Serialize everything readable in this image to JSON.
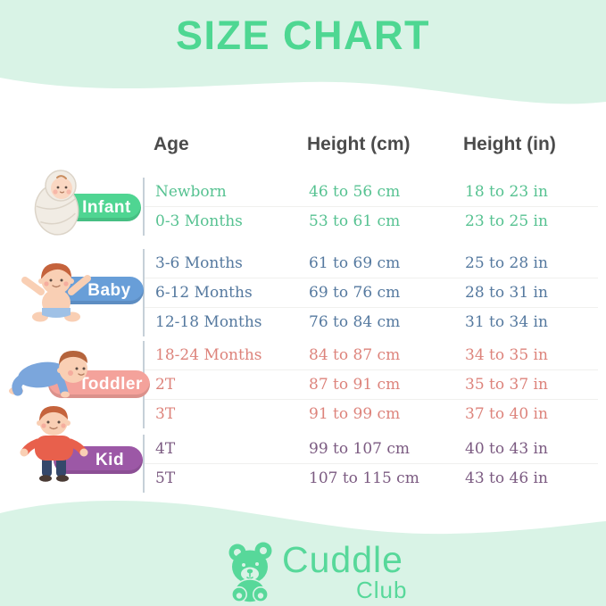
{
  "title": "SIZE CHART",
  "header": {
    "age": "Age",
    "height_cm": "Height (cm)",
    "height_in": "Height (in)"
  },
  "groups": [
    {
      "label": "Infant",
      "pill_color": "#4fd592",
      "text_color": "#56c291",
      "rows": [
        {
          "age": "Newborn",
          "cm": "46 to 56 cm",
          "in": "18 to 23 in"
        },
        {
          "age": "0-3 Months",
          "cm": "53 to 61 cm",
          "in": "23 to 25 in"
        }
      ]
    },
    {
      "label": "Baby",
      "pill_color": "#689ed8",
      "text_color": "#55799f",
      "rows": [
        {
          "age": "3-6 Months",
          "cm": "61 to 69 cm",
          "in": "25 to 28 in"
        },
        {
          "age": "6-12 Months",
          "cm": "69 to 76 cm",
          "in": "28 to 31 in"
        },
        {
          "age": "12-18 Months",
          "cm": "76 to 84 cm",
          "in": "31 to 34 in"
        }
      ]
    },
    {
      "label": "Toddler",
      "pill_color": "#f4a29b",
      "text_color": "#dd837b",
      "rows": [
        {
          "age": "18-24 Months",
          "cm": "84 to 87 cm",
          "in": "34 to 35 in"
        },
        {
          "age": "2T",
          "cm": "87 to 91 cm",
          "in": "35 to 37 in"
        },
        {
          "age": "3T",
          "cm": "91 to 99 cm",
          "in": "37 to 40 in"
        }
      ]
    },
    {
      "label": "Kid",
      "pill_color": "#9c58a6",
      "text_color": "#7b5a81",
      "rows": [
        {
          "age": "4T",
          "cm": "99 to 107 cm",
          "in": "40 to 43 in"
        },
        {
          "age": "5T",
          "cm": "107 to 115 cm",
          "in": "43 to 46 in"
        }
      ]
    }
  ],
  "logo": {
    "brand": "Cuddle",
    "sub": "Club"
  },
  "colors": {
    "background_mint": "#d9f3e6",
    "title_green": "#4ed792",
    "header_text": "#4b4b4b",
    "logo_green": "#57d89a",
    "divider": "#c6d0d8",
    "row_separator": "#f0f0ee"
  }
}
